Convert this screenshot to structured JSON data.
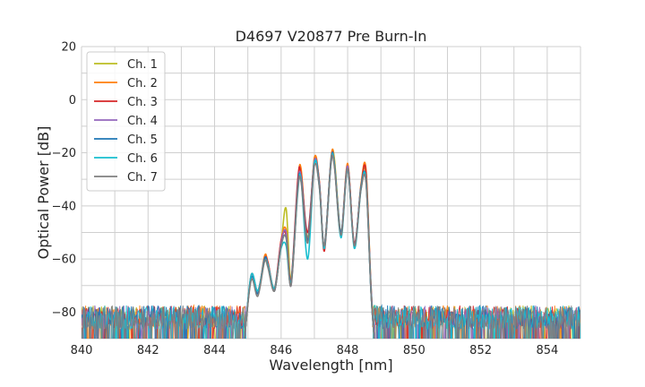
{
  "chart_data": {
    "type": "line",
    "title": "D4697 V20877 Pre Burn-In",
    "xlabel": "Wavelength [nm]",
    "ylabel": "Optical Power [dB]",
    "xlim": [
      840,
      855
    ],
    "ylim": [
      -90,
      20
    ],
    "xticks": [
      840,
      842,
      844,
      846,
      848,
      850,
      852,
      854
    ],
    "yticks": [
      20,
      0,
      -20,
      -40,
      -60,
      -80
    ],
    "grid": true,
    "legend_position": "top-left",
    "noise_floor_db": -82,
    "series": [
      {
        "name": "Ch. 1",
        "color": "#bcbd22",
        "x": [
          844.9,
          845.1,
          845.3,
          845.5,
          845.6,
          845.8,
          846.0,
          846.15,
          846.3,
          846.5,
          846.6,
          846.8,
          847.0,
          847.15,
          847.3,
          847.5,
          847.6,
          847.8,
          848.0,
          848.2,
          848.4,
          848.55,
          848.7,
          848.8
        ],
        "y": [
          -90,
          -67,
          -73,
          -60,
          -62,
          -72,
          -54,
          -41,
          -68,
          -33,
          -27,
          -52,
          -22,
          -32,
          -55,
          -23,
          -22,
          -50,
          -25,
          -55,
          -33,
          -28,
          -70,
          -90
        ]
      },
      {
        "name": "Ch. 2",
        "color": "#ff7f0e",
        "x": [
          844.9,
          845.1,
          845.3,
          845.5,
          845.6,
          845.8,
          846.0,
          846.15,
          846.3,
          846.5,
          846.6,
          846.8,
          847.0,
          847.15,
          847.3,
          847.5,
          847.6,
          847.8,
          848.0,
          848.2,
          848.4,
          848.55,
          848.7,
          848.8
        ],
        "y": [
          -90,
          -67,
          -73,
          -59,
          -61,
          -72,
          -53,
          -49,
          -69,
          -32,
          -26,
          -53,
          -22,
          -31,
          -56,
          -22,
          -23,
          -50,
          -24,
          -55,
          -32,
          -26,
          -70,
          -90
        ]
      },
      {
        "name": "Ch. 3",
        "color": "#d62728",
        "x": [
          844.9,
          845.1,
          845.3,
          845.5,
          845.6,
          845.8,
          846.0,
          846.15,
          846.3,
          846.5,
          846.6,
          846.8,
          847.0,
          847.15,
          847.3,
          847.5,
          847.6,
          847.8,
          848.0,
          848.2,
          848.4,
          848.55,
          848.7,
          848.8
        ],
        "y": [
          -90,
          -66,
          -72,
          -60,
          -61,
          -71,
          -53,
          -51,
          -68,
          -30,
          -28,
          -50,
          -23,
          -31,
          -57,
          -23,
          -24,
          -51,
          -25,
          -54,
          -33,
          -27,
          -72,
          -90
        ]
      },
      {
        "name": "Ch. 4",
        "color": "#9467bd",
        "x": [
          844.9,
          845.1,
          845.3,
          845.5,
          845.6,
          845.8,
          846.0,
          846.15,
          846.3,
          846.5,
          846.6,
          846.8,
          847.0,
          847.15,
          847.3,
          847.5,
          847.6,
          847.8,
          848.0,
          848.2,
          848.4,
          848.55,
          848.7,
          848.8
        ],
        "y": [
          -90,
          -67,
          -73,
          -60,
          -62,
          -72,
          -54,
          -50,
          -70,
          -33,
          -29,
          -53,
          -23,
          -32,
          -55,
          -23,
          -24,
          -50,
          -25,
          -55,
          -33,
          -30,
          -70,
          -90
        ]
      },
      {
        "name": "Ch. 5",
        "color": "#1f77b4",
        "x": [
          844.9,
          845.1,
          845.3,
          845.5,
          845.6,
          845.8,
          846.0,
          846.15,
          846.3,
          846.5,
          846.6,
          846.8,
          847.0,
          847.15,
          847.3,
          847.5,
          847.6,
          847.8,
          848.0,
          848.2,
          848.4,
          848.55,
          848.7,
          848.8
        ],
        "y": [
          -90,
          -67,
          -73,
          -60,
          -62,
          -72,
          -55,
          -52,
          -69,
          -33,
          -30,
          -53,
          -24,
          -32,
          -55,
          -23,
          -24,
          -50,
          -26,
          -55,
          -33,
          -30,
          -72,
          -90
        ]
      },
      {
        "name": "Ch. 6",
        "color": "#17becf",
        "x": [
          844.9,
          845.1,
          845.3,
          845.5,
          845.6,
          845.8,
          846.0,
          846.15,
          846.3,
          846.5,
          846.6,
          846.8,
          847.0,
          847.15,
          847.3,
          847.5,
          847.6,
          847.8,
          848.0,
          848.2,
          848.4,
          848.55,
          848.7,
          848.8
        ],
        "y": [
          -90,
          -66,
          -72,
          -61,
          -62,
          -71,
          -56,
          -55,
          -69,
          -35,
          -30,
          -60,
          -24,
          -33,
          -56,
          -24,
          -24,
          -52,
          -26,
          -56,
          -34,
          -30,
          -72,
          -90
        ]
      },
      {
        "name": "Ch. 7",
        "color": "#7f7f7f",
        "x": [
          844.9,
          845.1,
          845.3,
          845.5,
          845.6,
          845.8,
          846.0,
          846.15,
          846.3,
          846.5,
          846.6,
          846.8,
          847.0,
          847.15,
          847.3,
          847.5,
          847.6,
          847.8,
          848.0,
          848.2,
          848.4,
          848.55,
          848.7,
          848.8
        ],
        "y": [
          -90,
          -68,
          -74,
          -61,
          -63,
          -72,
          -55,
          -52,
          -70,
          -34,
          -31,
          -54,
          -25,
          -33,
          -55,
          -24,
          -25,
          -51,
          -26,
          -55,
          -34,
          -31,
          -72,
          -90
        ]
      }
    ]
  }
}
